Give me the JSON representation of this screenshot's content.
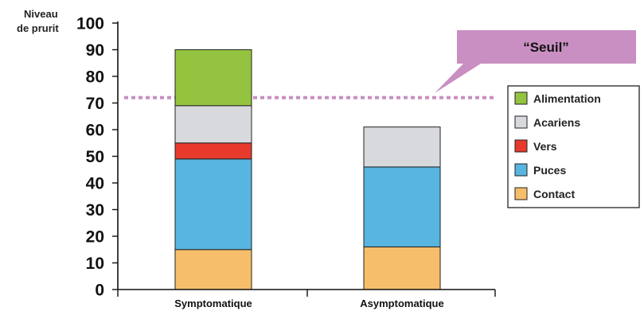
{
  "chart_data": {
    "type": "bar",
    "stacked": true,
    "ylabel_lines": [
      "Niveau",
      "de prurit"
    ],
    "xlabel": "",
    "ylim": [
      0,
      100
    ],
    "yticks": [
      0,
      10,
      20,
      30,
      40,
      50,
      60,
      70,
      80,
      90,
      100
    ],
    "categories": [
      "Symptomatique",
      "Asymptomatique"
    ],
    "series": [
      {
        "name": "Contact",
        "color": "#f6bd6a",
        "values": [
          15,
          16
        ]
      },
      {
        "name": "Puces",
        "color": "#57b5df",
        "values": [
          34,
          30
        ]
      },
      {
        "name": "Vers",
        "color": "#e8392d",
        "values": [
          6,
          0
        ]
      },
      {
        "name": "Acariens",
        "color": "#d7d9dc",
        "values": [
          14,
          15
        ]
      },
      {
        "name": "Alimentation",
        "color": "#94c33f",
        "values": [
          21,
          0
        ]
      }
    ],
    "legend": {
      "placement": "right",
      "order": [
        "Alimentation",
        "Acariens",
        "Vers",
        "Puces",
        "Contact"
      ]
    },
    "threshold": {
      "label": "“Seuil”",
      "value": 72,
      "line_color": "#c98fc2"
    },
    "callout_color": "#c98fc2",
    "grid": false
  }
}
